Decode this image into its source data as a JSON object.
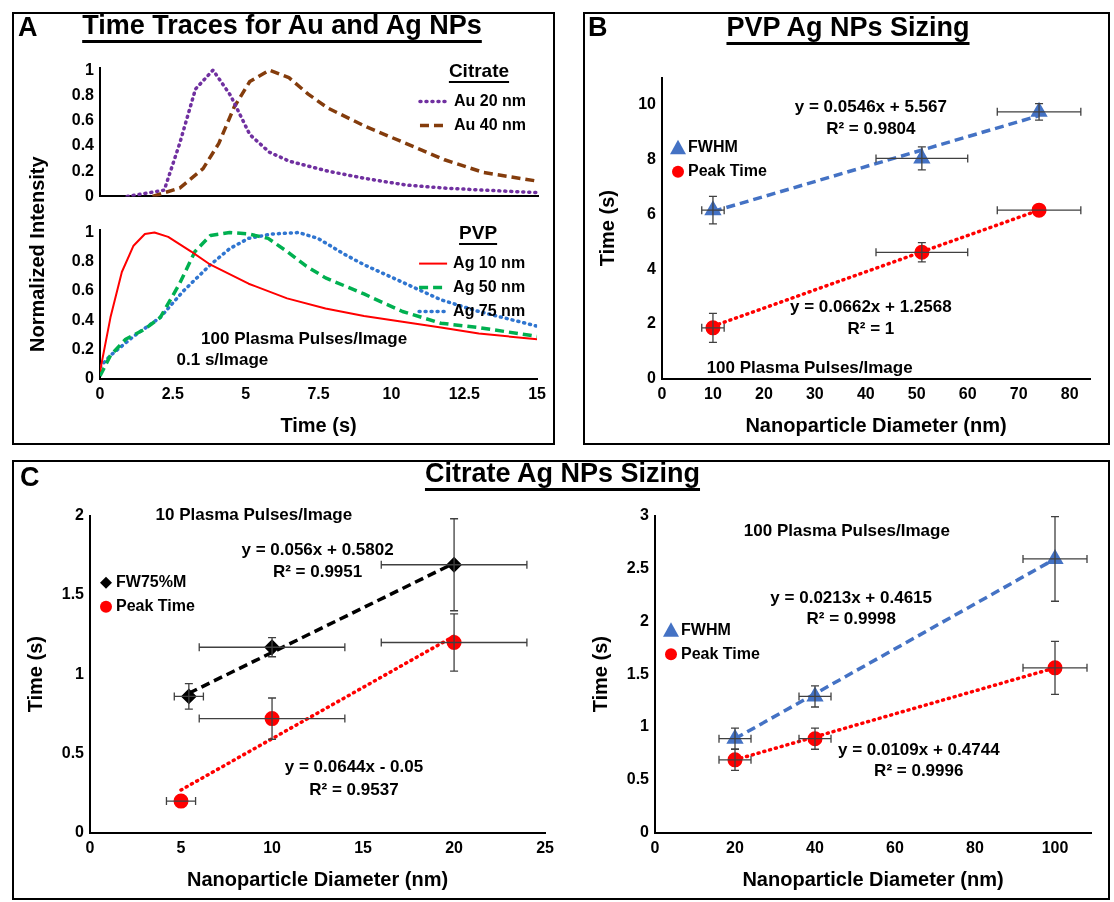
{
  "chart_data": [
    {
      "type": "line",
      "title": "Time Traces for Au and Ag NPs",
      "annotations": [
        "A"
      ],
      "legend": "top right",
      "legend_title": "Citrate",
      "xlim": [
        0,
        15
      ],
      "xticks": [
        0,
        2.5,
        5,
        7.5,
        10,
        12.5,
        15
      ],
      "ylim": [
        0,
        1.02
      ],
      "yticks": [
        0,
        0.2,
        0.4,
        0.6,
        0.8,
        1
      ],
      "tick_labels": "y",
      "series": [
        {
          "name": "Au 20 nm",
          "color": "#7030a0",
          "line_style": "dotted",
          "marker": "none",
          "x": [
            0.93,
            2.2,
            2.73,
            3.27,
            3.87,
            4.47,
            5.13,
            5.8,
            6.47,
            7.8,
            9.13,
            10.47,
            11.8,
            13.1,
            15
          ],
          "values": [
            0,
            0.05,
            0.42,
            0.85,
            1,
            0.8,
            0.49,
            0.35,
            0.28,
            0.2,
            0.14,
            0.09,
            0.066,
            0.05,
            0.03
          ]
        },
        {
          "name": "Au 40 nm",
          "color": "#843c0c",
          "line_style": "dashed",
          "marker": "none",
          "x": [
            1.8,
            2.73,
            3.53,
            4.07,
            4.6,
            5.13,
            5.8,
            6.47,
            7.13,
            7.8,
            9.13,
            10.47,
            11.8,
            13.13,
            15
          ],
          "values": [
            0,
            0.066,
            0.22,
            0.42,
            0.71,
            0.91,
            1,
            0.94,
            0.81,
            0.7,
            0.55,
            0.42,
            0.29,
            0.19,
            0.12
          ]
        }
      ]
    },
    {
      "type": "line",
      "legend": "top right",
      "legend_title": "PVP",
      "xlabel": "Time (s)",
      "ylabel": "Normalized Intensity",
      "xlim": [
        0,
        15
      ],
      "xticks": [
        0,
        2.5,
        5,
        7.5,
        10,
        12.5,
        15
      ],
      "ylim": [
        0,
        1.02
      ],
      "yticks": [
        0,
        0.2,
        0.4,
        0.6,
        0.8,
        1
      ],
      "annotations": [
        "100 Plasma Pulses/Image",
        "0.1 s/Image"
      ],
      "series": [
        {
          "name": "Ag 10 nm",
          "color": "#ff0000",
          "line_style": "solid",
          "marker": "none",
          "x": [
            0,
            0.36,
            0.75,
            1.15,
            1.54,
            1.87,
            2.34,
            3.13,
            3.79,
            5.1,
            6.42,
            7.74,
            9.06,
            10.38,
            11.7,
            13,
            15
          ],
          "values": [
            0.05,
            0.42,
            0.73,
            0.91,
            0.99,
            1,
            0.97,
            0.87,
            0.78,
            0.65,
            0.55,
            0.48,
            0.43,
            0.39,
            0.35,
            0.31,
            0.27
          ]
        },
        {
          "name": "Ag 50 nm",
          "color": "#00b050",
          "line_style": "dashed",
          "marker": "none",
          "x": [
            0,
            0.36,
            0.88,
            1.54,
            2.07,
            2.73,
            3.26,
            3.79,
            4.45,
            5.1,
            5.77,
            6.42,
            7.08,
            7.74,
            9.06,
            10.38,
            11.7,
            13,
            15
          ],
          "values": [
            0.02,
            0.16,
            0.27,
            0.34,
            0.42,
            0.65,
            0.87,
            0.98,
            1,
            0.99,
            0.96,
            0.87,
            0.77,
            0.69,
            0.58,
            0.46,
            0.38,
            0.35,
            0.29
          ]
        },
        {
          "name": "Ag 75 nm",
          "color": "#2f75d0",
          "line_style": "dotted",
          "marker": "none",
          "x": [
            0,
            0.36,
            1.15,
            2.07,
            2.86,
            3.79,
            4.45,
            5.1,
            5.9,
            6.82,
            7.48,
            8.4,
            9.06,
            10.38,
            11.7,
            13,
            15
          ],
          "values": [
            0.08,
            0.16,
            0.29,
            0.42,
            0.6,
            0.78,
            0.89,
            0.96,
            0.99,
            1,
            0.96,
            0.85,
            0.78,
            0.66,
            0.54,
            0.46,
            0.36
          ]
        }
      ]
    },
    {
      "type": "scatter",
      "title": "PVP Ag NPs Sizing",
      "xlabel": "Nanoparticle Diameter (nm)",
      "ylabel": "Time (s)",
      "legend": "left",
      "xlim": [
        0,
        84
      ],
      "xticks": [
        0,
        10,
        20,
        30,
        40,
        50,
        60,
        70,
        80
      ],
      "ylim": [
        0,
        11
      ],
      "yticks": [
        0,
        2,
        4,
        6,
        8,
        10
      ],
      "annotations": [
        "B",
        "y = 0.0546x + 5.567",
        "R² = 0.9804",
        "y = 0.0662x + 1.2568",
        "R² = 1",
        "100 Plasma Pulses/Image"
      ],
      "series": [
        {
          "type": "line",
          "color": "#4472c4",
          "line_style": "dashed",
          "marker": "none",
          "x": [
            10,
            74
          ],
          "values": [
            6.11,
            9.61
          ]
        },
        {
          "type": "line",
          "color": "#ff0000",
          "line_style": "dotted",
          "marker": "none",
          "x": [
            10,
            74
          ],
          "values": [
            1.92,
            6.16
          ]
        },
        {
          "name": "FWHM",
          "type": "scatter",
          "color": "#4472c4",
          "marker": "triangle",
          "x": [
            10,
            51,
            74
          ],
          "values": [
            6.16,
            8.05,
            9.75
          ],
          "errors": [
            0.5,
            0.42,
            0.3
          ],
          "xerrors": [
            2.2,
            9,
            8.2
          ]
        },
        {
          "name": "Peak Time",
          "type": "scatter",
          "color": "#ff0000",
          "marker": "circle",
          "x": [
            10,
            51,
            74
          ],
          "values": [
            1.86,
            4.62,
            6.16
          ],
          "errors": [
            0.53,
            0.35,
            null
          ],
          "xerrors": [
            2.2,
            9,
            8.2
          ]
        }
      ]
    },
    {
      "type": "scatter",
      "title": "Citrate Ag NPs Sizing",
      "xlabel": "Nanoparticle Diameter (nm)",
      "ylabel": "Time (s)",
      "legend": "left",
      "xlim": [
        0,
        25
      ],
      "xticks": [
        0,
        5,
        10,
        15,
        20,
        25
      ],
      "ylim": [
        0,
        2
      ],
      "yticks": [
        0,
        0.5,
        1,
        1.5,
        2
      ],
      "annotations": [
        "C",
        "10 Plasma Pulses/Image",
        "y = 0.056x + 0.5802",
        "R² = 0.9951",
        "y = 0.0644x - 0.05",
        "R² = 0.9537"
      ],
      "series": [
        {
          "type": "line",
          "color": "#000000",
          "line_style": "dashed",
          "marker": "none",
          "x": [
            5.43,
            20
          ],
          "values": [
            0.88,
            1.7
          ]
        },
        {
          "type": "line",
          "color": "#ff0000",
          "line_style": "dotted",
          "marker": "none",
          "x": [
            5,
            20
          ],
          "values": [
            0.27,
            1.24
          ]
        },
        {
          "name": "FW75%M",
          "type": "scatter",
          "color": "#000000",
          "marker": "diamond",
          "x": [
            5.43,
            10,
            20
          ],
          "values": [
            0.86,
            1.17,
            1.69
          ],
          "errors": [
            0.08,
            0.06,
            0.29
          ],
          "xerrors": [
            0.8,
            4,
            4
          ]
        },
        {
          "name": "Peak Time",
          "type": "scatter",
          "color": "#ff0000",
          "marker": "circle",
          "x": [
            5,
            10,
            20
          ],
          "values": [
            0.2,
            0.72,
            1.2
          ],
          "errors": [
            null,
            0.13,
            0.18
          ],
          "xerrors": [
            0.8,
            4,
            4
          ]
        }
      ]
    },
    {
      "type": "scatter",
      "xlabel": "Nanoparticle Diameter (nm)",
      "ylabel": "Time (s)",
      "legend": "left",
      "xlim": [
        0,
        109
      ],
      "xticks": [
        0,
        20,
        40,
        60,
        80,
        100
      ],
      "ylim": [
        0,
        3
      ],
      "yticks": [
        0,
        0.5,
        1,
        1.5,
        2,
        2.5,
        3
      ],
      "annotations": [
        "100 Plasma Pulses/Image",
        "y = 0.0213x + 0.4615",
        "R² = 0.9998",
        "y = 0.0109x + 0.4744",
        "R² = 0.9996"
      ],
      "series": [
        {
          "type": "line",
          "color": "#4472c4",
          "line_style": "dashed",
          "marker": "none",
          "x": [
            20,
            100
          ],
          "values": [
            0.89,
            2.59
          ]
        },
        {
          "type": "line",
          "color": "#ff0000",
          "line_style": "dotted",
          "marker": "none",
          "x": [
            20,
            100
          ],
          "values": [
            0.69,
            1.56
          ]
        },
        {
          "name": "FWHM",
          "type": "scatter",
          "color": "#4472c4",
          "marker": "triangle",
          "x": [
            20,
            40,
            100
          ],
          "values": [
            0.89,
            1.29,
            2.59
          ],
          "errors": [
            0.1,
            0.1,
            0.4
          ],
          "xerrors": [
            4,
            4,
            8
          ]
        },
        {
          "name": "Peak Time",
          "type": "scatter",
          "color": "#ff0000",
          "marker": "circle",
          "x": [
            20,
            40,
            100
          ],
          "values": [
            0.69,
            0.89,
            1.56
          ],
          "errors": [
            0.1,
            0.1,
            0.25
          ],
          "xerrors": [
            4,
            4,
            8
          ]
        }
      ]
    }
  ]
}
